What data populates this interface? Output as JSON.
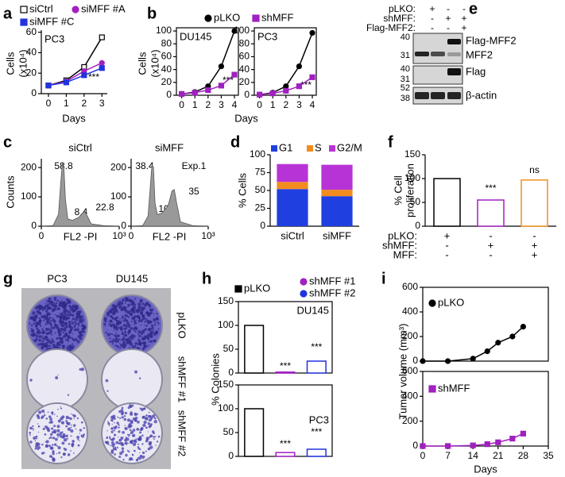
{
  "chart_data": [
    {
      "type": "line",
      "panel": "a",
      "title": "PC3",
      "ylabel": [
        "Cells",
        "(x10⁴)"
      ],
      "xlabel": "Days",
      "x": [
        0,
        1,
        2,
        3
      ],
      "xlim": [
        -0.4,
        3.3
      ],
      "xticks": [
        0,
        1,
        2,
        3
      ],
      "ylim": [
        0,
        62
      ],
      "yticks": [
        0,
        20,
        40,
        60
      ],
      "annotations": [
        "***"
      ],
      "series": [
        {
          "name": "siCtrl",
          "color": "#000000",
          "marker": "square",
          "filled": false,
          "values": [
            8,
            13,
            26,
            55
          ]
        },
        {
          "name": "siMFF #A",
          "color": "#a020c0",
          "marker": "circle",
          "filled": true,
          "values": [
            8,
            12,
            22,
            30
          ]
        },
        {
          "name": "siMFF #C",
          "color": "#2233dd",
          "marker": "square",
          "filled": true,
          "values": [
            8,
            11,
            18,
            25
          ]
        }
      ]
    },
    {
      "type": "line",
      "panel": "b",
      "title": "DU145",
      "ylabel": [
        "Cells",
        "(x10⁴)"
      ],
      "xlabel": "Days",
      "x": [
        0,
        1,
        2,
        3,
        4
      ],
      "xlim": [
        -0.4,
        4.3
      ],
      "xticks": [
        0,
        1,
        2,
        3,
        4
      ],
      "ylim": [
        0,
        105
      ],
      "yticks": [
        0,
        20,
        40,
        60,
        80,
        100
      ],
      "annotations": [
        "***"
      ],
      "series": [
        {
          "name": "pLKO",
          "color": "#000000",
          "marker": "circle",
          "filled": true,
          "values": [
            2,
            5,
            14,
            45,
            100
          ]
        },
        {
          "name": "shMFF",
          "color": "#a020c0",
          "marker": "square",
          "filled": true,
          "values": [
            2,
            4,
            8,
            15,
            32
          ]
        }
      ]
    },
    {
      "type": "line",
      "title": "PC3",
      "x": [
        0,
        1,
        2,
        3,
        4
      ],
      "xlim": [
        -0.4,
        4.3
      ],
      "xticks": [
        0,
        1,
        2,
        3,
        4
      ],
      "ylim": [
        0,
        105
      ],
      "yticks": [
        0,
        20,
        40,
        60,
        80,
        100
      ],
      "annotations": [
        "***"
      ],
      "series": [
        {
          "color": "#000000",
          "marker": "circle",
          "filled": true,
          "values": [
            1,
            4,
            14,
            45,
            97
          ]
        },
        {
          "color": "#a020c0",
          "marker": "square",
          "filled": true,
          "values": [
            1,
            3,
            7,
            14,
            28
          ]
        }
      ]
    },
    {
      "type": "area",
      "panel": "c",
      "title": "siCtrl",
      "ylabel": [
        "Counts"
      ],
      "xlabel": "FL2 -PI",
      "color": "#999999",
      "x": [
        0,
        150,
        220,
        250,
        270,
        290,
        310,
        340,
        400,
        480,
        530,
        560,
        590,
        640,
        800,
        1000
      ],
      "values": [
        0,
        2,
        40,
        150,
        215,
        200,
        90,
        25,
        20,
        30,
        45,
        50,
        35,
        8,
        2,
        0
      ],
      "xlim": [
        0,
        1000
      ],
      "xticks": [
        0,
        {
          "value": 1000,
          "label": "10³"
        }
      ],
      "ylim": [
        0,
        230
      ],
      "yticks": [
        0,
        100,
        200
      ],
      "annotations": [
        "58.8",
        "8.4",
        "22.8"
      ]
    },
    {
      "type": "area",
      "title": "siMFF",
      "xlabel": "FL2 -PI",
      "color": "#999999",
      "x": [
        0,
        150,
        220,
        250,
        270,
        290,
        310,
        340,
        400,
        480,
        530,
        560,
        590,
        640,
        800,
        1000
      ],
      "values": [
        0,
        2,
        35,
        140,
        210,
        200,
        80,
        40,
        45,
        70,
        120,
        125,
        80,
        15,
        2,
        0
      ],
      "xlim": [
        0,
        1000
      ],
      "xticks": [
        0,
        {
          "value": 1000,
          "label": "10³"
        }
      ],
      "ylim": [
        0,
        230
      ],
      "yticks": [
        0,
        100,
        200
      ],
      "annotations": [
        "38.4",
        "10",
        "35",
        "Exp.1"
      ]
    },
    {
      "type": "stacked_bar",
      "panel": "d",
      "ylabel": [
        "% Cells"
      ],
      "categories": [
        "siCtrl",
        "siMFF"
      ],
      "ylim": [
        0,
        100
      ],
      "yticks": [
        0,
        25,
        50,
        75,
        100
      ],
      "series": [
        {
          "name": "G1",
          "color": "#1f3fe0",
          "values": [
            52,
            42
          ]
        },
        {
          "name": "S",
          "color": "#f28c1e",
          "values": [
            10,
            9
          ]
        },
        {
          "name": "G2/M",
          "color": "#b833d6",
          "values": [
            25,
            35
          ]
        }
      ]
    },
    {
      "type": "bar",
      "panel": "f",
      "ylabel": [
        "% Cell",
        "proliferation"
      ],
      "values": [
        100,
        55,
        97
      ],
      "colors": [
        "#000000",
        "#a020c0",
        "#f0901e"
      ],
      "ylim": [
        0,
        150
      ],
      "yticks": [
        0,
        50,
        100,
        150
      ],
      "annotations": [
        "***",
        "ns"
      ],
      "conditions": [
        {
          "label": "pLKO:",
          "signs": [
            "+",
            "-",
            "-"
          ]
        },
        {
          "label": "shMFF:",
          "signs": [
            "-",
            "+",
            "+"
          ]
        },
        {
          "label": "MFF:",
          "signs": [
            "-",
            "-",
            "+"
          ]
        }
      ]
    },
    {
      "type": "bar",
      "panel": "h",
      "title": "DU145",
      "ylabel": [
        "% Colonies"
      ],
      "categories": [
        "pLKO",
        "shMFF #1",
        "shMFF #2"
      ],
      "values": [
        100,
        2,
        25
      ],
      "colors": [
        "#000000",
        "#a020c0",
        "#2233dd"
      ],
      "ylim": [
        0,
        150
      ],
      "yticks": [
        0,
        50,
        100,
        150
      ],
      "annotations": [
        "***",
        "***"
      ]
    },
    {
      "type": "bar",
      "title": "PC3",
      "values": [
        100,
        8,
        15
      ],
      "colors": [
        "#000000",
        "#a020c0",
        "#2233dd"
      ],
      "ylim": [
        0,
        150
      ],
      "yticks": [
        0,
        50,
        100,
        150
      ],
      "annotations": [
        "***",
        "***"
      ]
    },
    {
      "type": "line",
      "panel": "i",
      "ylabel": [
        "Tumor volume (mm³)"
      ],
      "x": [
        0,
        7,
        14,
        18,
        21,
        25,
        28
      ],
      "xlim": [
        0,
        35
      ],
      "ylim": [
        0,
        600
      ],
      "yticks": [
        0,
        200,
        400,
        600
      ],
      "series": [
        {
          "name": "pLKO",
          "color": "#000000",
          "marker": "circle",
          "filled": true,
          "values": [
            0,
            0,
            20,
            80,
            150,
            200,
            280
          ]
        }
      ]
    },
    {
      "type": "line",
      "xlabel": "Days",
      "x": [
        0,
        7,
        14,
        18,
        21,
        25,
        28
      ],
      "xlim": [
        0,
        35
      ],
      "xticks": [
        0,
        7,
        14,
        21,
        28,
        35
      ],
      "ylim": [
        0,
        600
      ],
      "yticks": [
        0,
        200,
        400,
        600
      ],
      "series": [
        {
          "name": "shMFF",
          "color": "#a020c0",
          "marker": "square",
          "filled": true,
          "values": [
            0,
            0,
            5,
            15,
            30,
            60,
            100
          ]
        }
      ]
    }
  ],
  "blot": {
    "panel": "e",
    "rows": [
      {
        "label": "pLKO:",
        "signs": [
          "+",
          "-",
          "-"
        ]
      },
      {
        "label": "shMFF:",
        "signs": [
          "-",
          "+",
          "+"
        ]
      },
      {
        "label": "Flag-MFF2:",
        "signs": [
          "-",
          "-",
          "+"
        ]
      }
    ],
    "markers": [
      "40",
      "31",
      "40",
      "31",
      "52",
      "38"
    ],
    "bands": [
      "Flag-MFF2",
      "MFF2",
      "Flag",
      "β-actin"
    ]
  },
  "colonies": {
    "panel": "g",
    "columns": [
      "PC3",
      "DU145"
    ],
    "rows": [
      "pLKO",
      "shMFF #1",
      "shMFF #2"
    ]
  }
}
